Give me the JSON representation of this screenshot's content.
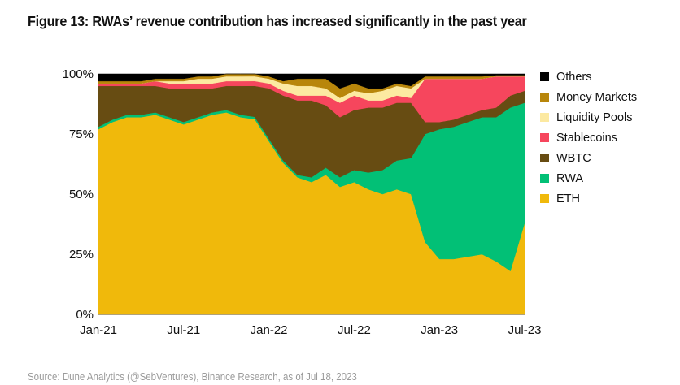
{
  "title": "Figure 13: RWAs’ revenue contribution has increased significantly in the past year",
  "source": "Source: Dune Analytics (@SebVentures), Binance Research, as of Jul 18, 2023",
  "chart_data": {
    "type": "area",
    "stacked": true,
    "normalized_percent": true,
    "title": "Figure 13: RWAs’ revenue contribution has increased significantly in the past year",
    "xlabel": "",
    "ylabel": "",
    "ylim": [
      0,
      100
    ],
    "yticks": [
      "0%",
      "25%",
      "50%",
      "75%",
      "100%"
    ],
    "ytick_values": [
      0,
      25,
      50,
      75,
      100
    ],
    "xticks": [
      "Jan-21",
      "Jul-21",
      "Jan-22",
      "Jul-22",
      "Jan-23",
      "Jul-23"
    ],
    "xtick_index": [
      0,
      6,
      12,
      18,
      24,
      30
    ],
    "grid": false,
    "legend_position": "right",
    "x": [
      "Jan-21",
      "Feb-21",
      "Mar-21",
      "Apr-21",
      "May-21",
      "Jun-21",
      "Jul-21",
      "Aug-21",
      "Sep-21",
      "Oct-21",
      "Nov-21",
      "Dec-21",
      "Jan-22",
      "Feb-22",
      "Mar-22",
      "Apr-22",
      "May-22",
      "Jun-22",
      "Jul-22",
      "Aug-22",
      "Sep-22",
      "Oct-22",
      "Nov-22",
      "Dec-22",
      "Jan-23",
      "Feb-23",
      "Mar-23",
      "Apr-23",
      "May-23",
      "Jun-23",
      "Jul-23"
    ],
    "series": [
      {
        "name": "ETH",
        "color": "#F0B90B",
        "values": [
          77,
          80,
          82,
          82,
          83,
          81,
          79,
          81,
          83,
          84,
          82,
          82,
          72,
          63,
          57,
          55,
          58,
          53,
          55,
          52,
          50,
          52,
          50,
          30,
          23,
          23,
          24,
          25,
          22,
          18,
          38
        ]
      },
      {
        "name": "RWA",
        "color": "#02C076",
        "values": [
          1,
          1,
          1,
          1,
          1,
          1,
          1,
          1,
          1,
          1,
          1,
          1,
          1,
          1,
          1,
          2,
          3,
          4,
          5,
          7,
          10,
          12,
          15,
          45,
          54,
          55,
          56,
          57,
          60,
          68,
          50
        ]
      },
      {
        "name": "WBTC",
        "color": "#674C12",
        "values": [
          17,
          14,
          12,
          12,
          11,
          12,
          14,
          12,
          10,
          10,
          12,
          13,
          21,
          27,
          31,
          32,
          26,
          25,
          25,
          27,
          26,
          24,
          23,
          5,
          3,
          3,
          3,
          3,
          4,
          5,
          5
        ]
      },
      {
        "name": "Stablecoins",
        "color": "#F6465D",
        "values": [
          1,
          1,
          1,
          1,
          2,
          2,
          2,
          2,
          2,
          2,
          2,
          2,
          2,
          2,
          2,
          2,
          4,
          6,
          6,
          3,
          3,
          3,
          2,
          18,
          18,
          17,
          15,
          13,
          13,
          8,
          6
        ]
      },
      {
        "name": "Liquidity Pools",
        "color": "#FCE9A1",
        "values": [
          0,
          0,
          0,
          0,
          0,
          1,
          1,
          2,
          2,
          2,
          2,
          2,
          2,
          3,
          4,
          4,
          3,
          2,
          2,
          3,
          4,
          4,
          4,
          0,
          0,
          0,
          0,
          0,
          0,
          0,
          0
        ]
      },
      {
        "name": "Money Markets",
        "color": "#B8860B",
        "values": [
          1,
          1,
          1,
          1,
          1,
          1,
          1,
          1,
          1,
          1,
          1,
          1,
          1,
          1,
          3,
          3,
          4,
          4,
          3,
          2,
          1,
          1,
          1,
          1,
          1,
          1,
          1,
          1,
          0.5,
          0.5,
          0.5
        ]
      },
      {
        "name": "Others",
        "color": "#000000",
        "values": [
          3,
          3,
          3,
          3,
          2,
          2,
          2,
          1,
          1,
          0,
          0,
          0,
          1,
          3,
          2,
          2,
          2,
          6,
          4,
          6,
          6,
          4,
          5,
          1,
          1,
          1,
          1,
          1,
          0.5,
          0.5,
          0.5
        ]
      }
    ],
    "legend": [
      "Others",
      "Money Markets",
      "Liquidity Pools",
      "Stablecoins",
      "WBTC",
      "RWA",
      "ETH"
    ]
  }
}
